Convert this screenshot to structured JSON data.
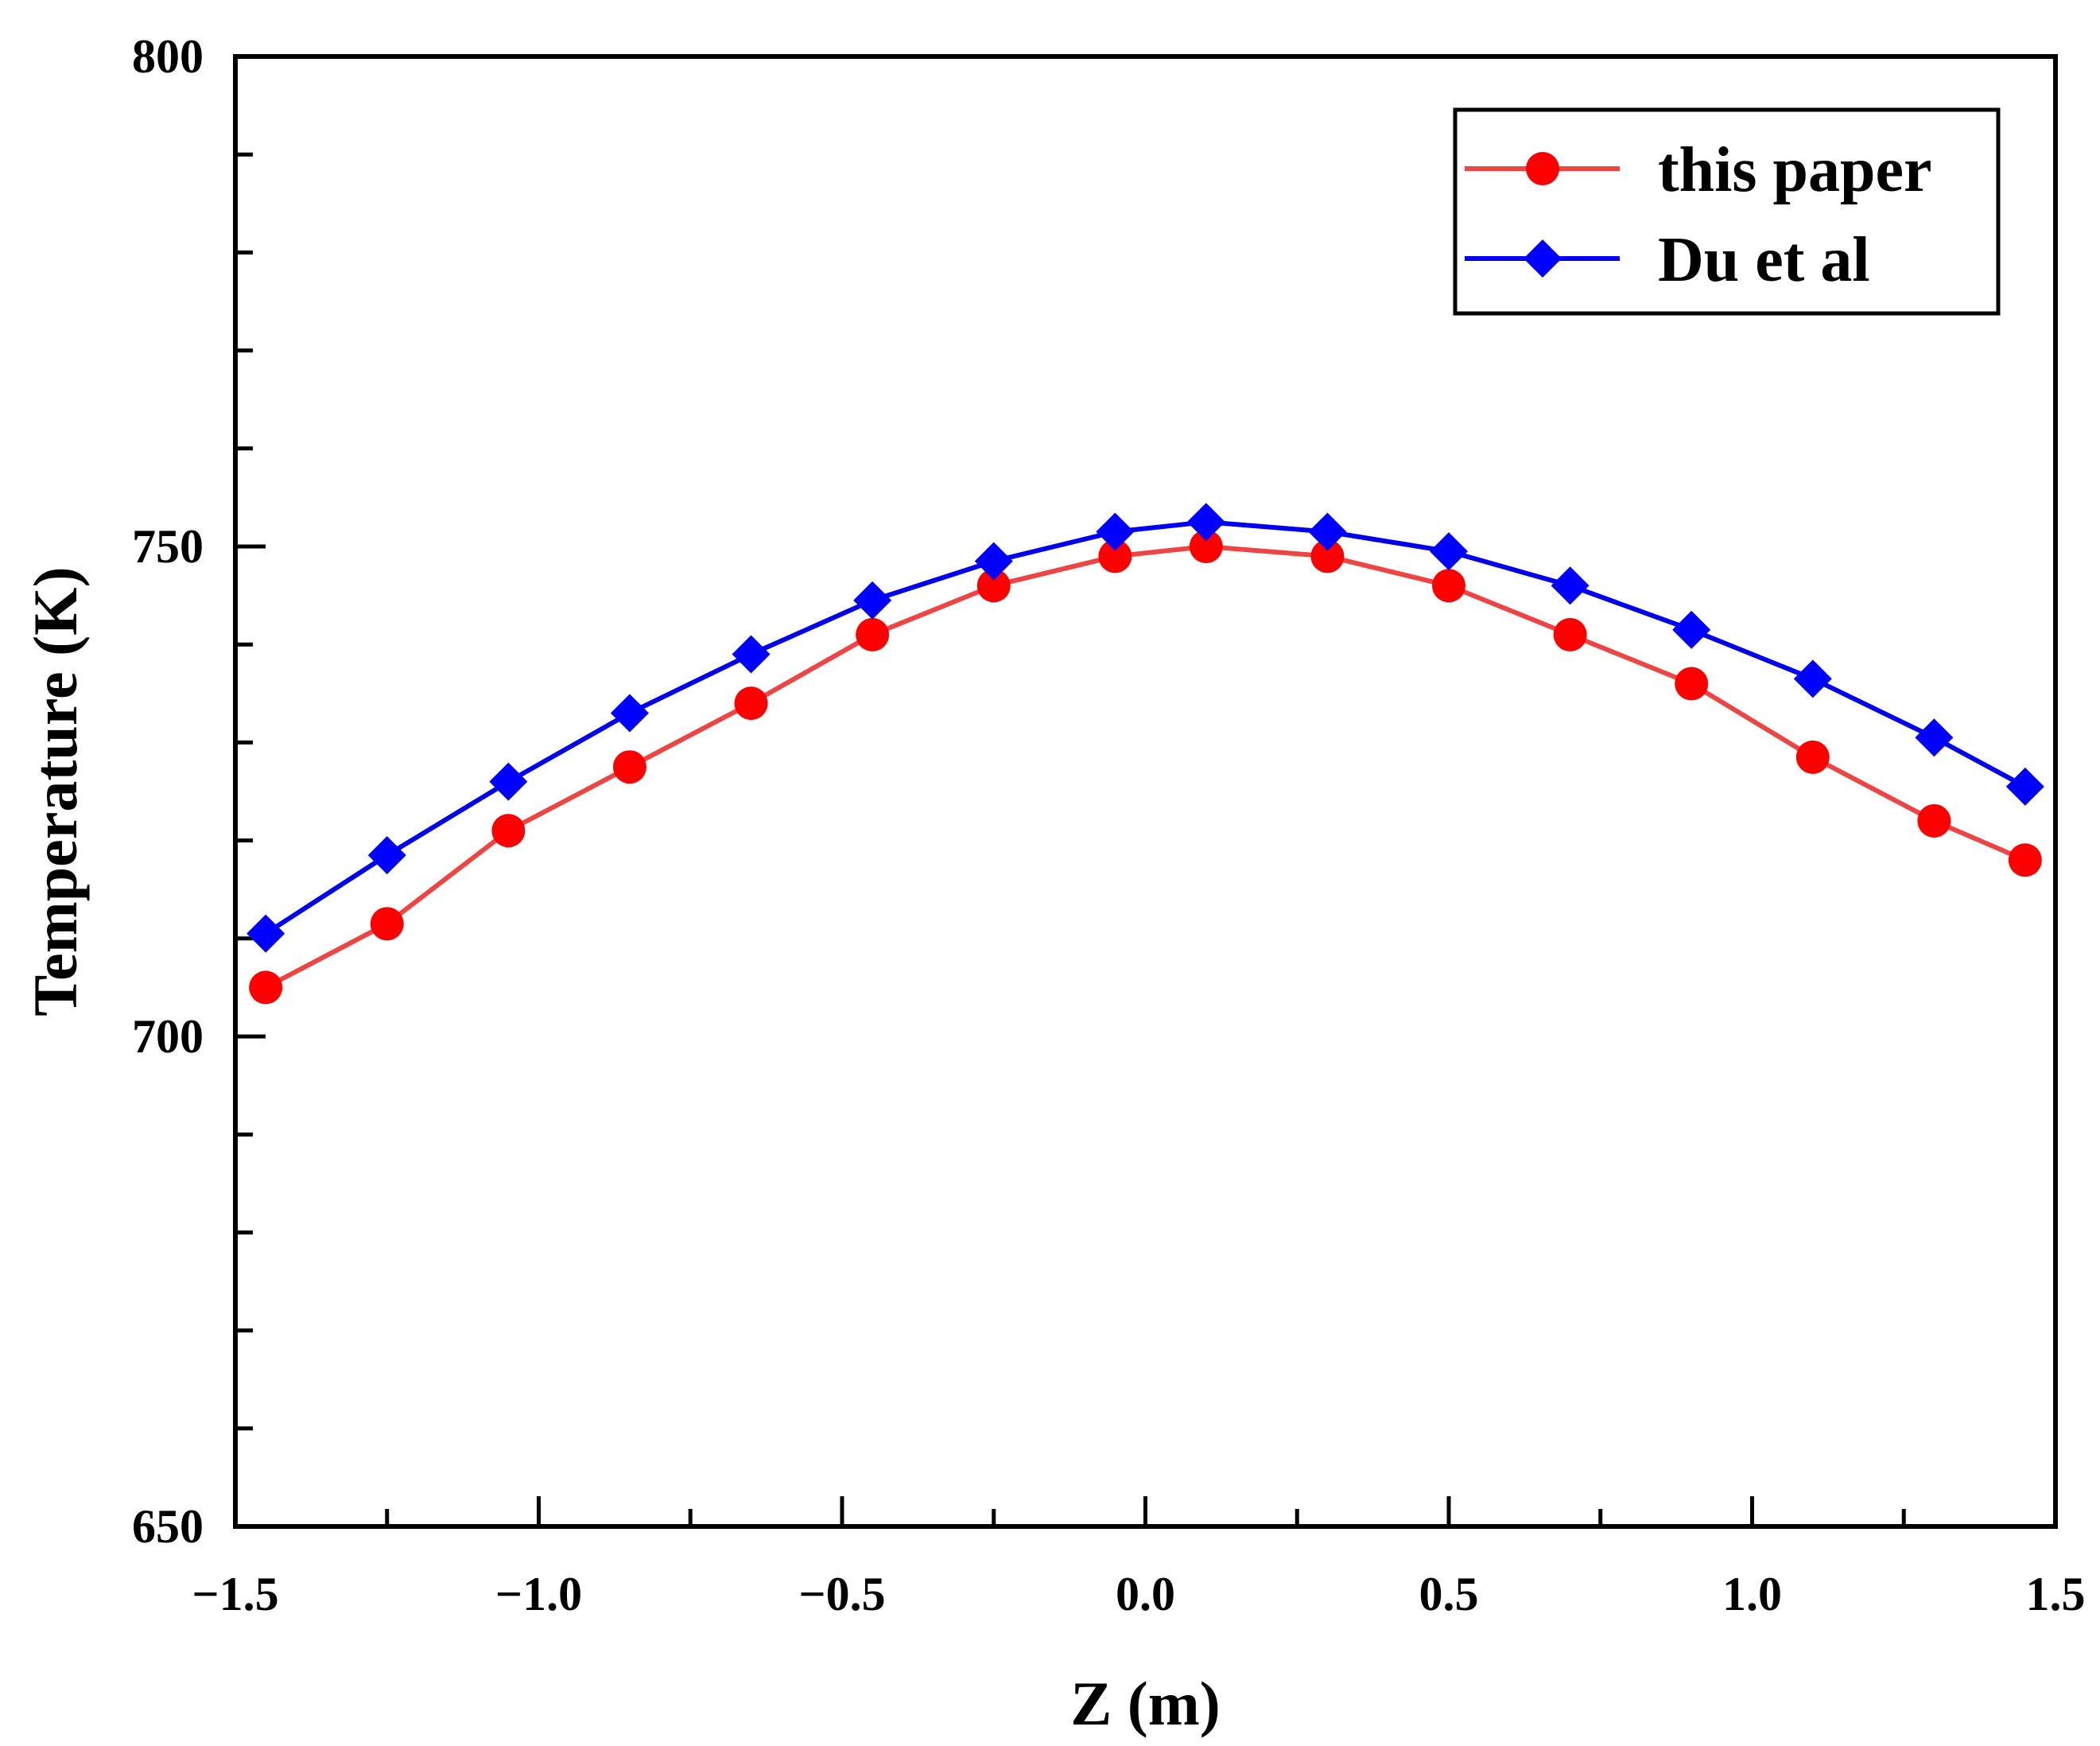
{
  "chart_data": {
    "type": "line",
    "title": "",
    "xlabel": "Z (m)",
    "ylabel": "Temperature (K)",
    "xlim": [
      -1.5,
      1.5
    ],
    "ylim": [
      650,
      800
    ],
    "x_major_ticks": [
      -1.5,
      -1.0,
      -0.5,
      0.0,
      0.5,
      1.0,
      1.5
    ],
    "x_tick_labels": [
      "−1.5",
      "−1.0",
      "−0.5",
      "0.0",
      "0.5",
      "1.0",
      "1.5"
    ],
    "x_minor_ticks": [
      -1.25,
      -0.75,
      -0.25,
      0.25,
      0.75,
      1.25
    ],
    "y_major_ticks": [
      650,
      700,
      750,
      800
    ],
    "y_tick_labels": [
      "650",
      "700",
      "750",
      "800"
    ],
    "y_minor_ticks": [
      660,
      670,
      680,
      690,
      710,
      720,
      730,
      740,
      760,
      770,
      780,
      790
    ],
    "legend_position": "top-right",
    "grid": false,
    "series": [
      {
        "name": "this paper",
        "color": "#ff0000",
        "line_color": "#ee4444",
        "marker": "circle",
        "x": [
          -1.45,
          -1.25,
          -1.05,
          -0.85,
          -0.65,
          -0.45,
          -0.25,
          -0.05,
          0.1,
          0.3,
          0.5,
          0.7,
          0.9,
          1.1,
          1.3,
          1.45
        ],
        "y": [
          705.0,
          711.5,
          721.0,
          727.5,
          734.0,
          741.0,
          746.0,
          749.0,
          750.0,
          749.0,
          746.0,
          741.0,
          736.0,
          728.5,
          722.0,
          718.0
        ]
      },
      {
        "name": "Du et al",
        "color": "#0000ff",
        "line_color": "#0000ee",
        "marker": "diamond",
        "x": [
          -1.45,
          -1.25,
          -1.05,
          -0.85,
          -0.65,
          -0.45,
          -0.25,
          -0.05,
          0.1,
          0.3,
          0.5,
          0.7,
          0.9,
          1.1,
          1.3,
          1.45
        ],
        "y": [
          710.5,
          718.5,
          726.0,
          733.0,
          739.0,
          744.5,
          748.5,
          751.5,
          752.5,
          751.5,
          749.5,
          746.0,
          741.5,
          736.5,
          730.5,
          725.5
        ]
      }
    ]
  }
}
